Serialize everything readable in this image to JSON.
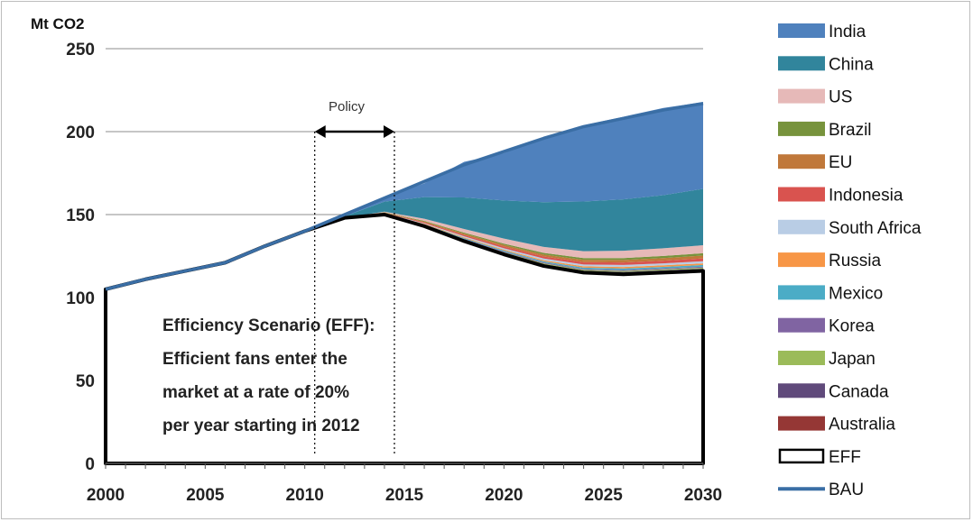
{
  "chart_data": {
    "type": "area",
    "ylabel": "Mt CO2",
    "xlim": [
      2000,
      2030
    ],
    "ylim": [
      0,
      250
    ],
    "yticks": [
      0,
      50,
      100,
      150,
      200,
      250
    ],
    "xticks": [
      2000,
      2005,
      2010,
      2015,
      2020,
      2025,
      2030
    ],
    "grid": "horizontal",
    "legend_position": "right",
    "x": [
      2000,
      2002,
      2004,
      2006,
      2008,
      2010,
      2012,
      2014,
      2016,
      2018,
      2020,
      2022,
      2024,
      2026,
      2028,
      2030
    ],
    "bau": [
      105,
      111,
      116,
      121,
      131,
      140,
      150,
      160,
      170,
      180,
      188,
      196,
      203,
      208,
      213,
      217
    ],
    "eff": [
      105,
      111,
      116,
      121,
      131,
      140,
      148,
      150,
      143,
      134,
      126,
      119,
      115,
      114,
      115,
      116
    ],
    "series": [
      {
        "name": "Australia",
        "color": "#953735",
        "values": [
          0,
          0,
          0,
          0,
          0,
          0,
          0,
          0.1,
          0.2,
          0.4,
          0.5,
          0.6,
          0.7,
          0.8,
          0.8,
          0.8
        ]
      },
      {
        "name": "Canada",
        "color": "#604a7b",
        "values": [
          0,
          0,
          0,
          0,
          0,
          0,
          0,
          0.1,
          0.2,
          0.3,
          0.4,
          0.5,
          0.5,
          0.6,
          0.6,
          0.6
        ]
      },
      {
        "name": "Japan",
        "color": "#9bbb59",
        "values": [
          0,
          0,
          0,
          0,
          0,
          0,
          0,
          0.1,
          0.2,
          0.3,
          0.4,
          0.5,
          0.5,
          0.6,
          0.6,
          0.6
        ]
      },
      {
        "name": "Korea",
        "color": "#8064a2",
        "values": [
          0,
          0,
          0,
          0,
          0,
          0,
          0,
          0.1,
          0.2,
          0.3,
          0.4,
          0.5,
          0.5,
          0.6,
          0.6,
          0.6
        ]
      },
      {
        "name": "Mexico",
        "color": "#4bacc6",
        "values": [
          0,
          0,
          0,
          0,
          0,
          0,
          0,
          0.1,
          0.3,
          0.5,
          0.6,
          0.7,
          0.8,
          0.9,
          0.9,
          1.0
        ]
      },
      {
        "name": "Russia",
        "color": "#f79646",
        "values": [
          0,
          0,
          0,
          0,
          0,
          0,
          0,
          0.1,
          0.3,
          0.5,
          0.6,
          0.7,
          0.8,
          0.9,
          0.9,
          1.0
        ]
      },
      {
        "name": "South Africa",
        "color": "#b9cde5",
        "values": [
          0,
          0,
          0,
          0,
          0,
          0,
          0,
          0.2,
          0.4,
          0.6,
          0.8,
          1.0,
          1.1,
          1.2,
          1.2,
          1.3
        ]
      },
      {
        "name": "Indonesia",
        "color": "#d9534f",
        "values": [
          0,
          0,
          0,
          0,
          0,
          0,
          0,
          0.2,
          0.5,
          0.8,
          1.0,
          1.2,
          1.4,
          1.5,
          1.6,
          1.7
        ]
      },
      {
        "name": "EU",
        "color": "#c0783a",
        "values": [
          0,
          0,
          0,
          0,
          0,
          0,
          0,
          0.2,
          0.5,
          0.8,
          1.0,
          1.2,
          1.4,
          1.5,
          1.6,
          1.7
        ]
      },
      {
        "name": "Brazil",
        "color": "#77933c",
        "values": [
          0,
          0,
          0,
          0,
          0,
          0,
          0,
          0.2,
          0.4,
          0.6,
          0.8,
          1.0,
          1.1,
          1.2,
          1.3,
          1.4
        ]
      },
      {
        "name": "US",
        "color": "#e6b9b8",
        "values": [
          0,
          0,
          0,
          0,
          0,
          0,
          0,
          0.4,
          1.3,
          2.2,
          3.0,
          3.6,
          4.1,
          4.4,
          4.6,
          4.8
        ]
      },
      {
        "name": "China",
        "color": "#31859c",
        "values": [
          0,
          0,
          0,
          0,
          0,
          0,
          1.0,
          6,
          13,
          19,
          23,
          27,
          30,
          31,
          32,
          34
        ]
      },
      {
        "name": "India",
        "color": "#4f81bd",
        "values": [
          0,
          0,
          0,
          0,
          0,
          0,
          1.0,
          2.4,
          8.3,
          21.5,
          28.5,
          38.5,
          45.9,
          49.8,
          52.6,
          52.3
        ]
      }
    ],
    "legend": [
      {
        "label": "India",
        "color": "#4f81bd",
        "kind": "area"
      },
      {
        "label": "China",
        "color": "#31859c",
        "kind": "area"
      },
      {
        "label": "US",
        "color": "#e6b9b8",
        "kind": "area"
      },
      {
        "label": "Brazil",
        "color": "#77933c",
        "kind": "area"
      },
      {
        "label": "EU",
        "color": "#c0783a",
        "kind": "area"
      },
      {
        "label": "Indonesia",
        "color": "#d9534f",
        "kind": "area"
      },
      {
        "label": "South Africa",
        "color": "#b9cde5",
        "kind": "area"
      },
      {
        "label": "Russia",
        "color": "#f79646",
        "kind": "area"
      },
      {
        "label": "Mexico",
        "color": "#4bacc6",
        "kind": "area"
      },
      {
        "label": "Korea",
        "color": "#8064a2",
        "kind": "area"
      },
      {
        "label": "Japan",
        "color": "#9bbb59",
        "kind": "area"
      },
      {
        "label": "Canada",
        "color": "#604a7b",
        "kind": "area"
      },
      {
        "label": "Australia",
        "color": "#953735",
        "kind": "area"
      },
      {
        "label": "EFF",
        "color": "#000000",
        "kind": "outline"
      },
      {
        "label": "BAU",
        "color": "#3a6ea5",
        "kind": "line"
      }
    ],
    "annotations": {
      "policy_label": "Policy",
      "policy_range": [
        2010.5,
        2014.5
      ],
      "policy_arrow_y": 200,
      "scenario_lines": [
        "Efficiency Scenario (EFF):",
        "Efficient fans enter the",
        "market at a rate of 20%",
        "per year starting  in 2012"
      ]
    }
  }
}
